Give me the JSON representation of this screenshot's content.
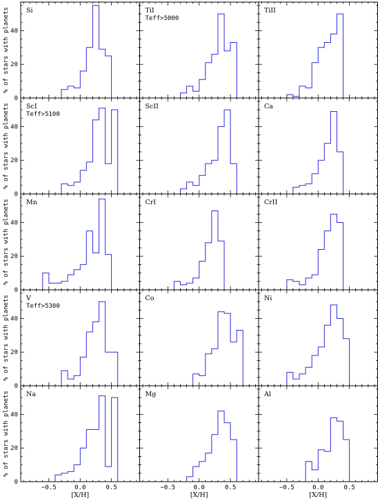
{
  "chart_data": {
    "type": "histogram-grid",
    "rows": 5,
    "cols": 3,
    "ylabel": "% of stars with planets",
    "xlabel": "[X/H]",
    "xlim": [
      -0.95,
      0.95
    ],
    "ylim": [
      0,
      57
    ],
    "xticks": [
      -0.5,
      0,
      0.5
    ],
    "xtick_labels": [
      "−0.5",
      "0.0",
      "0.5"
    ],
    "yticks": [
      0,
      20,
      40
    ],
    "ytick_labels": [
      "0",
      "20",
      "40"
    ],
    "bin_width": 0.1,
    "color": "#2b2bd9",
    "panels": [
      {
        "label": [
          "Si"
        ],
        "x0": -0.3,
        "values": [
          5,
          7,
          6,
          16,
          30,
          55,
          29,
          25
        ]
      },
      {
        "label": [
          "TiI",
          "Teff>5000"
        ],
        "x0": -0.3,
        "values": [
          3,
          7,
          4,
          11,
          21,
          26,
          50,
          28,
          33
        ]
      },
      {
        "label": [
          "TiII"
        ],
        "x0": -0.5,
        "values": [
          2,
          1,
          7,
          6,
          21,
          30,
          33,
          38,
          50
        ]
      },
      {
        "label": [
          "ScI",
          "Teff>5100"
        ],
        "x0": -0.3,
        "values": [
          6,
          5,
          7,
          14,
          19,
          44,
          51,
          18,
          50
        ]
      },
      {
        "label": [
          "ScII"
        ],
        "x0": -0.3,
        "values": [
          3,
          7,
          5,
          11,
          18,
          20,
          40,
          50,
          18
        ]
      },
      {
        "label": [
          "Ca"
        ],
        "x0": -0.4,
        "values": [
          4,
          5,
          6,
          12,
          20,
          30,
          49,
          25
        ]
      },
      {
        "label": [
          "Mn"
        ],
        "x0": -0.6,
        "values": [
          10,
          4,
          4,
          5,
          9,
          12,
          15,
          35,
          22,
          54,
          21
        ]
      },
      {
        "label": [
          "CrI"
        ],
        "x0": -0.4,
        "values": [
          5,
          3,
          4,
          7,
          17,
          28,
          47,
          29
        ]
      },
      {
        "label": [
          "CrII"
        ],
        "x0": -0.5,
        "values": [
          6,
          5,
          3,
          7,
          9,
          24,
          35,
          45,
          40
        ]
      },
      {
        "label": [
          "V",
          "Teff>5300"
        ],
        "x0": -0.3,
        "values": [
          9,
          4,
          6,
          17,
          32,
          38,
          50,
          20,
          20
        ]
      },
      {
        "label": [
          "Co"
        ],
        "x0": -0.1,
        "values": [
          7,
          6,
          19,
          22,
          44,
          43,
          26,
          33
        ]
      },
      {
        "label": [
          "Ni"
        ],
        "x0": -0.5,
        "values": [
          8,
          4,
          7,
          11,
          18,
          23,
          36,
          48,
          40,
          28
        ]
      },
      {
        "label": [
          "Na"
        ],
        "x0": -0.4,
        "values": [
          4,
          5,
          6,
          10,
          20,
          31,
          31,
          51,
          9,
          50
        ]
      },
      {
        "label": [
          "Mg"
        ],
        "x0": -0.2,
        "values": [
          3,
          9,
          12,
          17,
          28,
          42,
          35,
          25
        ]
      },
      {
        "label": [
          "Al"
        ],
        "x0": -0.2,
        "values": [
          12,
          7,
          19,
          18,
          38,
          36,
          25
        ]
      }
    ]
  }
}
